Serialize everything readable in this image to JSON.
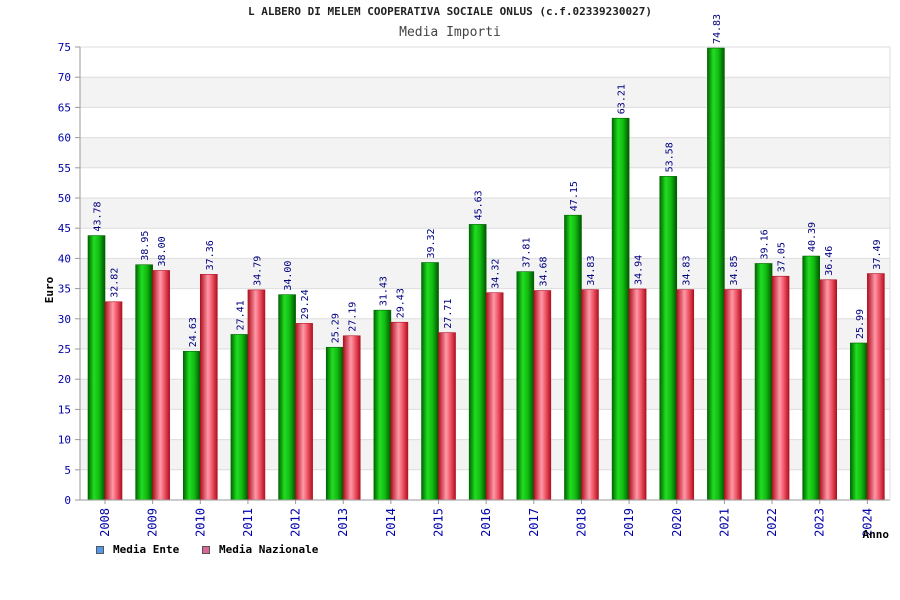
{
  "chart_data": {
    "type": "bar",
    "title": "L ALBERO DI MELEM COOPERATIVA SOCIALE ONLUS (c.f.02339230027)",
    "subtitle": "Media Importi",
    "xlabel": "Anno",
    "ylabel": "Euro",
    "ylim": [
      0,
      75
    ],
    "yticks": [
      0,
      5,
      10,
      15,
      20,
      25,
      30,
      35,
      40,
      45,
      50,
      55,
      60,
      65,
      70,
      75
    ],
    "categories": [
      "2008",
      "2009",
      "2010",
      "2011",
      "2012",
      "2013",
      "2014",
      "2015",
      "2016",
      "2017",
      "2018",
      "2019",
      "2020",
      "2021",
      "2022",
      "2023",
      "2024"
    ],
    "series": [
      {
        "name": "Media Ente",
        "color": "#00b000",
        "legend_color": "#5599ee",
        "values": [
          43.78,
          38.95,
          24.63,
          27.41,
          34.0,
          25.29,
          31.43,
          39.32,
          45.63,
          37.81,
          47.15,
          63.21,
          53.58,
          74.83,
          39.16,
          40.39,
          25.99
        ],
        "labels": [
          "43.78",
          "38.95",
          "24.63",
          "27.41",
          "34.00",
          "25.29",
          "31.43",
          "39.32",
          "45.63",
          "37.81",
          "47.15",
          "63.21",
          "53.58",
          "74.83",
          "39.16",
          "40.39",
          "25.99"
        ]
      },
      {
        "name": "Media Nazionale",
        "color": "#e03040",
        "legend_color": "#dd6699",
        "values": [
          32.82,
          38.0,
          37.36,
          34.79,
          29.24,
          27.19,
          29.43,
          27.71,
          34.32,
          34.68,
          34.83,
          34.94,
          34.83,
          34.85,
          37.05,
          36.46,
          37.49
        ],
        "labels": [
          "32.82",
          "38.00",
          "37.36",
          "34.79",
          "29.24",
          "27.19",
          "29.43",
          "27.71",
          "34.32",
          "34.68",
          "34.83",
          "34.94",
          "34.83",
          "34.85",
          "37.05",
          "36.46",
          "37.49"
        ]
      }
    ],
    "legend_position": "bottom-left",
    "grid": true
  }
}
